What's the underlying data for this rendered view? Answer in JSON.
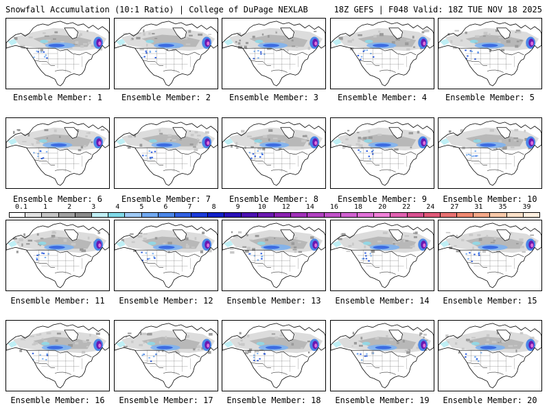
{
  "header": {
    "title": "Snowfall Accumulation (10:1 Ratio) | College of DuPage NEXLAB",
    "run_info": "18Z GEFS | F048 Valid: 18Z TUE NOV 18 2025"
  },
  "caption_prefix": "Ensemble Member: ",
  "members": [
    "1",
    "2",
    "3",
    "4",
    "5",
    "6",
    "7",
    "8",
    "9",
    "10",
    "11",
    "12",
    "13",
    "14",
    "15",
    "16",
    "17",
    "18",
    "19",
    "20"
  ],
  "colorbar": {
    "labels": [
      "0.1",
      "1",
      "2",
      "3",
      "4",
      "5",
      "6",
      "7",
      "8",
      "9",
      "10",
      "12",
      "14",
      "16",
      "18",
      "20",
      "22",
      "24",
      "27",
      "31",
      "35",
      "39"
    ],
    "colors": [
      "#ffffff",
      "#e2e2e2",
      "#c4c4c4",
      "#a0a0a0",
      "#8a8a8a",
      "#bfeff5",
      "#7fd9e8",
      "#9ec9f5",
      "#6fa8f0",
      "#4a86e8",
      "#2f5fe0",
      "#1a3ad8",
      "#1020c8",
      "#2810b8",
      "#4a10b0",
      "#6a18b0",
      "#8a20b0",
      "#a030b8",
      "#b040c0",
      "#c050c8",
      "#d060d0",
      "#e070d8",
      "#f080d8",
      "#e060b0",
      "#d85090",
      "#e05878",
      "#e87070",
      "#f08870",
      "#f5a888",
      "#f8c8a8",
      "#fce0c8",
      "#fff0e0"
    ]
  },
  "icons": {
    "map": "north-america-map-icon"
  }
}
